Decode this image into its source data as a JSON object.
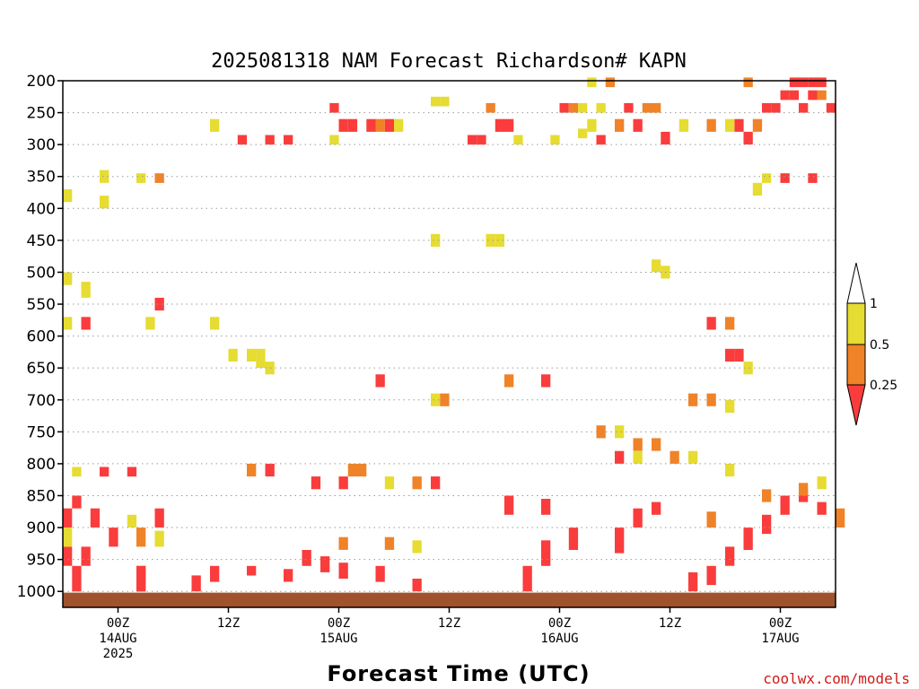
{
  "chart_data": {
    "type": "heatmap",
    "title": "2025081318 NAM Forecast Richardson# KAPN",
    "xlabel": "Forecast Time (UTC)",
    "ylabel": "",
    "y_axis": {
      "scale": "pressure (hPa), inverted",
      "ticks": [
        200,
        250,
        300,
        350,
        400,
        450,
        500,
        550,
        600,
        650,
        700,
        750,
        800,
        850,
        900,
        950,
        1000
      ],
      "range": [
        1025,
        200
      ],
      "grid": "dotted horizontal"
    },
    "x_axis": {
      "range_hours_from_init": [
        0,
        84
      ],
      "ticks": [
        {
          "hour": 6,
          "lines": [
            "00Z",
            "14AUG",
            "2025"
          ]
        },
        {
          "hour": 18,
          "lines": [
            "12Z"
          ]
        },
        {
          "hour": 30,
          "lines": [
            "00Z",
            "15AUG"
          ]
        },
        {
          "hour": 42,
          "lines": [
            "12Z"
          ]
        },
        {
          "hour": 54,
          "lines": [
            "00Z",
            "16AUG"
          ]
        },
        {
          "hour": 66,
          "lines": [
            "12Z"
          ]
        },
        {
          "hour": 78,
          "lines": [
            "00Z",
            "17AUG"
          ]
        }
      ]
    },
    "colorbar": {
      "labels": [
        "1",
        "0.5",
        "0.25"
      ],
      "bins": [
        {
          "range": "> 1",
          "color": "#ffffff"
        },
        {
          "range": "0.5 - 1",
          "color": "#e6dc32"
        },
        {
          "range": "0.25 - 0.5",
          "color": "#f08228"
        },
        {
          "range": "< 0.25",
          "color": "#fa3c3c"
        }
      ]
    },
    "colors": {
      "yellow": "#e6dc32",
      "orange": "#f08228",
      "red": "#fa3c3c",
      "ground": "#a0522d"
    },
    "ground_below_hpa": 1002,
    "cells": [
      [
        1,
        1000,
        960,
        "red"
      ],
      [
        8,
        1000,
        960,
        "red"
      ],
      [
        8,
        1000,
        960,
        "red"
      ],
      [
        0,
        960,
        930,
        "red"
      ],
      [
        2,
        960,
        930,
        "red"
      ],
      [
        0,
        930,
        900,
        "yellow"
      ],
      [
        0,
        900,
        870,
        "red"
      ],
      [
        3,
        900,
        870,
        "red"
      ],
      [
        1,
        870,
        850,
        "red"
      ],
      [
        5,
        930,
        900,
        "red"
      ],
      [
        8,
        930,
        900,
        "orange"
      ],
      [
        10,
        900,
        870,
        "red"
      ],
      [
        7,
        900,
        880,
        "yellow"
      ],
      [
        10,
        930,
        905,
        "yellow"
      ],
      [
        14,
        1000,
        975,
        "red"
      ],
      [
        16,
        985,
        960,
        "red"
      ],
      [
        20,
        975,
        960,
        "red"
      ],
      [
        24,
        985,
        965,
        "red"
      ],
      [
        26,
        960,
        935,
        "red"
      ],
      [
        28,
        970,
        945,
        "red"
      ],
      [
        30,
        980,
        955,
        "red"
      ],
      [
        34,
        985,
        960,
        "red"
      ],
      [
        38,
        1000,
        980,
        "red"
      ],
      [
        30,
        935,
        915,
        "orange"
      ],
      [
        35,
        935,
        915,
        "orange"
      ],
      [
        38,
        940,
        920,
        "yellow"
      ],
      [
        50,
        1000,
        960,
        "red"
      ],
      [
        52,
        960,
        920,
        "red"
      ],
      [
        55,
        935,
        900,
        "red"
      ],
      [
        48,
        880,
        850,
        "red"
      ],
      [
        52,
        880,
        855,
        "red"
      ],
      [
        60,
        940,
        900,
        "red"
      ],
      [
        62,
        900,
        870,
        "red"
      ],
      [
        64,
        880,
        860,
        "red"
      ],
      [
        68,
        1000,
        970,
        "red"
      ],
      [
        70,
        990,
        960,
        "red"
      ],
      [
        72,
        960,
        930,
        "red"
      ],
      [
        74,
        935,
        900,
        "red"
      ],
      [
        76,
        910,
        880,
        "red"
      ],
      [
        78,
        880,
        850,
        "red"
      ],
      [
        80,
        860,
        840,
        "red"
      ],
      [
        82,
        880,
        860,
        "red"
      ],
      [
        84,
        900,
        870,
        "orange"
      ],
      [
        70,
        900,
        875,
        "orange"
      ],
      [
        76,
        860,
        840,
        "orange"
      ],
      [
        80,
        850,
        830,
        "orange"
      ],
      [
        82,
        840,
        820,
        "yellow"
      ],
      [
        0,
        590,
        570,
        "yellow"
      ],
      [
        2,
        590,
        570,
        "red"
      ],
      [
        0,
        520,
        500,
        "yellow"
      ],
      [
        2,
        540,
        515,
        "yellow"
      ],
      [
        4,
        400,
        380,
        "yellow"
      ],
      [
        0,
        390,
        370,
        "yellow"
      ],
      [
        8,
        360,
        345,
        "yellow"
      ],
      [
        10,
        360,
        345,
        "orange"
      ],
      [
        9,
        590,
        570,
        "yellow"
      ],
      [
        1,
        820,
        805,
        "yellow"
      ],
      [
        4,
        820,
        805,
        "red"
      ],
      [
        7,
        820,
        805,
        "red"
      ],
      [
        16,
        590,
        570,
        "yellow"
      ],
      [
        18,
        640,
        620,
        "yellow"
      ],
      [
        21,
        650,
        620,
        "yellow"
      ],
      [
        22,
        660,
        640,
        "yellow"
      ],
      [
        16,
        280,
        260,
        "yellow"
      ],
      [
        19,
        300,
        285,
        "red"
      ],
      [
        22,
        300,
        285,
        "red"
      ],
      [
        24,
        300,
        285,
        "red"
      ],
      [
        29,
        300,
        285,
        "yellow"
      ],
      [
        29,
        250,
        235,
        "red"
      ],
      [
        30,
        280,
        260,
        "red"
      ],
      [
        31,
        280,
        260,
        "red"
      ],
      [
        33,
        280,
        260,
        "red"
      ],
      [
        34,
        280,
        260,
        "orange"
      ],
      [
        35,
        280,
        260,
        "red"
      ],
      [
        36,
        280,
        260,
        "yellow"
      ],
      [
        40,
        240,
        225,
        "yellow"
      ],
      [
        41,
        240,
        225,
        "yellow"
      ],
      [
        44,
        300,
        285,
        "red"
      ],
      [
        45,
        300,
        285,
        "red"
      ],
      [
        46,
        250,
        235,
        "orange"
      ],
      [
        47,
        280,
        260,
        "red"
      ],
      [
        48,
        280,
        260,
        "red"
      ],
      [
        49,
        300,
        285,
        "yellow"
      ],
      [
        54,
        250,
        235,
        "red"
      ],
      [
        55,
        250,
        235,
        "orange"
      ],
      [
        56,
        250,
        235,
        "yellow"
      ],
      [
        57,
        280,
        260,
        "yellow"
      ],
      [
        58,
        250,
        235,
        "yellow"
      ],
      [
        60,
        280,
        260,
        "orange"
      ],
      [
        61,
        250,
        235,
        "red"
      ],
      [
        62,
        280,
        260,
        "red"
      ],
      [
        63,
        250,
        235,
        "orange"
      ],
      [
        64,
        250,
        235,
        "orange"
      ],
      [
        65,
        300,
        280,
        "red"
      ],
      [
        67,
        280,
        260,
        "yellow"
      ],
      [
        70,
        280,
        260,
        "orange"
      ],
      [
        73,
        280,
        260,
        "red"
      ],
      [
        74,
        300,
        280,
        "red"
      ],
      [
        76,
        250,
        235,
        "red"
      ],
      [
        77,
        250,
        235,
        "red"
      ],
      [
        78,
        230,
        215,
        "red"
      ],
      [
        79,
        230,
        215,
        "red"
      ],
      [
        80,
        250,
        235,
        "red"
      ],
      [
        81,
        230,
        215,
        "red"
      ],
      [
        82,
        230,
        215,
        "orange"
      ],
      [
        83,
        250,
        235,
        "red"
      ],
      [
        79,
        210,
        195,
        "red"
      ],
      [
        80,
        210,
        195,
        "red"
      ],
      [
        81,
        210,
        195,
        "red"
      ],
      [
        82,
        210,
        195,
        "red"
      ],
      [
        59,
        210,
        195,
        "orange"
      ],
      [
        57,
        210,
        195,
        "yellow"
      ],
      [
        74,
        210,
        195,
        "orange"
      ],
      [
        81,
        360,
        345,
        "red"
      ],
      [
        78,
        360,
        345,
        "red"
      ],
      [
        76,
        360,
        345,
        "yellow"
      ],
      [
        75,
        380,
        360,
        "yellow"
      ],
      [
        72,
        280,
        260,
        "yellow"
      ],
      [
        75,
        280,
        260,
        "orange"
      ],
      [
        53,
        300,
        285,
        "yellow"
      ],
      [
        56,
        290,
        275,
        "yellow"
      ],
      [
        58,
        300,
        285,
        "red"
      ],
      [
        48,
        680,
        660,
        "orange"
      ],
      [
        52,
        680,
        660,
        "red"
      ],
      [
        58,
        760,
        740,
        "orange"
      ],
      [
        60,
        760,
        740,
        "yellow"
      ],
      [
        62,
        780,
        760,
        "orange"
      ],
      [
        64,
        780,
        760,
        "orange"
      ],
      [
        60,
        800,
        780,
        "red"
      ],
      [
        62,
        800,
        780,
        "yellow"
      ],
      [
        66,
        800,
        780,
        "orange"
      ],
      [
        68,
        800,
        780,
        "yellow"
      ],
      [
        72,
        820,
        800,
        "yellow"
      ],
      [
        70,
        590,
        570,
        "red"
      ],
      [
        72,
        590,
        570,
        "orange"
      ],
      [
        72,
        640,
        620,
        "red"
      ],
      [
        73,
        640,
        620,
        "red"
      ],
      [
        74,
        660,
        640,
        "yellow"
      ],
      [
        68,
        710,
        690,
        "orange"
      ],
      [
        70,
        710,
        690,
        "orange"
      ],
      [
        72,
        720,
        700,
        "yellow"
      ],
      [
        64,
        500,
        480,
        "yellow"
      ],
      [
        65,
        510,
        490,
        "yellow"
      ],
      [
        40,
        460,
        440,
        "yellow"
      ],
      [
        46,
        460,
        440,
        "yellow"
      ],
      [
        47,
        460,
        440,
        "yellow"
      ],
      [
        20,
        820,
        800,
        "orange"
      ],
      [
        22,
        820,
        800,
        "red"
      ],
      [
        27,
        840,
        820,
        "red"
      ],
      [
        30,
        840,
        820,
        "red"
      ],
      [
        31,
        820,
        800,
        "orange"
      ],
      [
        32,
        820,
        800,
        "orange"
      ],
      [
        35,
        840,
        820,
        "yellow"
      ],
      [
        38,
        840,
        820,
        "orange"
      ],
      [
        40,
        840,
        820,
        "red"
      ],
      [
        34,
        680,
        660,
        "red"
      ],
      [
        40,
        710,
        690,
        "yellow"
      ],
      [
        41,
        710,
        690,
        "orange"
      ],
      [
        10,
        560,
        540,
        "red"
      ],
      [
        20,
        640,
        620,
        "yellow"
      ],
      [
        4,
        360,
        340,
        "yellow"
      ]
    ]
  }
}
